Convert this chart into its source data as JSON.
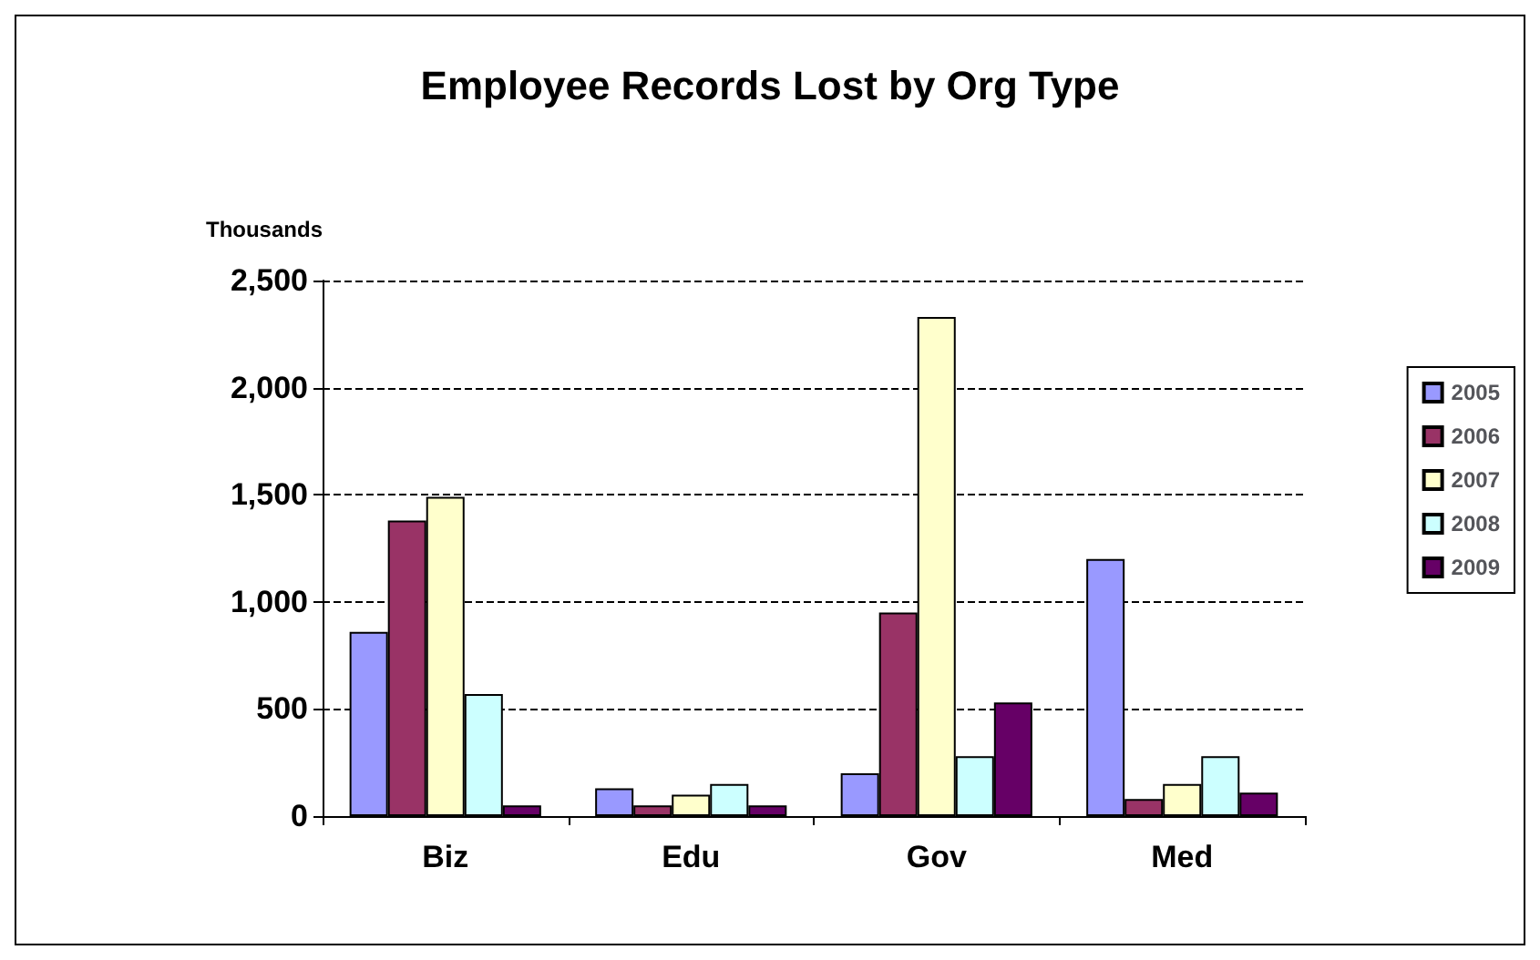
{
  "chart_data": {
    "type": "bar",
    "title": "Employee Records Lost by Org Type",
    "ylabel": "Thousands",
    "categories": [
      "Biz",
      "Edu",
      "Gov",
      "Med"
    ],
    "series": [
      {
        "name": "2005",
        "color": "#9999ff",
        "values": [
          860,
          130,
          200,
          1200
        ]
      },
      {
        "name": "2006",
        "color": "#993366",
        "values": [
          1380,
          50,
          950,
          80
        ]
      },
      {
        "name": "2007",
        "color": "#ffffcc",
        "values": [
          1490,
          100,
          2330,
          150
        ]
      },
      {
        "name": "2008",
        "color": "#ccffff",
        "values": [
          570,
          150,
          280,
          280
        ]
      },
      {
        "name": "2009",
        "color": "#660066",
        "values": [
          50,
          50,
          530,
          110
        ]
      }
    ],
    "ylim": [
      0,
      2500
    ],
    "yticks": [
      0,
      500,
      {
        "value": 1000,
        "label": "1,000"
      },
      {
        "value": 1500,
        "label": "1,500"
      },
      {
        "value": 2000,
        "label": "2,000"
      },
      {
        "value": 2500,
        "label": "2,500"
      }
    ],
    "grid": "y",
    "line_style": "dashed",
    "legend": "right"
  }
}
